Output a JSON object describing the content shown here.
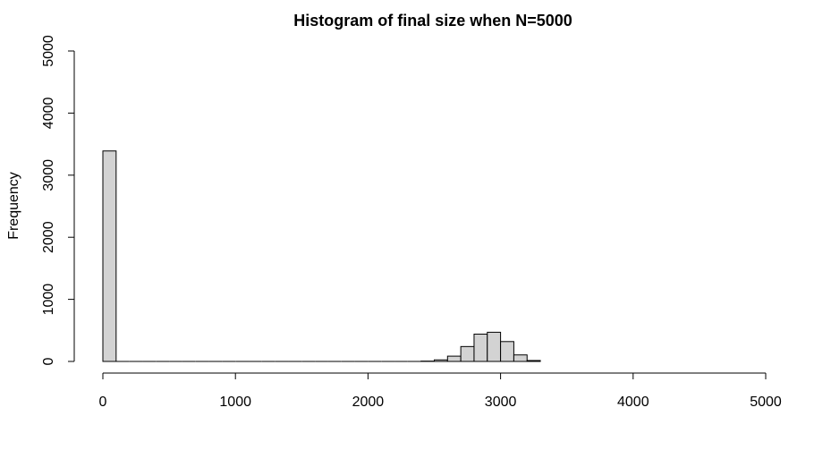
{
  "chart_data": {
    "type": "bar",
    "title": "Histogram of final size when N=5000",
    "xlabel": "",
    "ylabel": "Frequency",
    "xlim": [
      0,
      5000
    ],
    "ylim": [
      0,
      5000
    ],
    "x_ticks": [
      0,
      1000,
      2000,
      3000,
      4000,
      5000
    ],
    "y_ticks": [
      0,
      1000,
      2000,
      3000,
      4000,
      5000
    ],
    "bar_color": "#d3d3d3",
    "bin_width": 100,
    "bins": [
      {
        "x0": 0,
        "x1": 100,
        "count": 3390
      },
      {
        "x0": 2400,
        "x1": 2500,
        "count": 5
      },
      {
        "x0": 2500,
        "x1": 2600,
        "count": 25
      },
      {
        "x0": 2600,
        "x1": 2700,
        "count": 85
      },
      {
        "x0": 2700,
        "x1": 2800,
        "count": 240
      },
      {
        "x0": 2800,
        "x1": 2900,
        "count": 440
      },
      {
        "x0": 2900,
        "x1": 3000,
        "count": 470
      },
      {
        "x0": 3000,
        "x1": 3100,
        "count": 320
      },
      {
        "x0": 3100,
        "x1": 3200,
        "count": 105
      },
      {
        "x0": 3200,
        "x1": 3300,
        "count": 15
      }
    ]
  }
}
